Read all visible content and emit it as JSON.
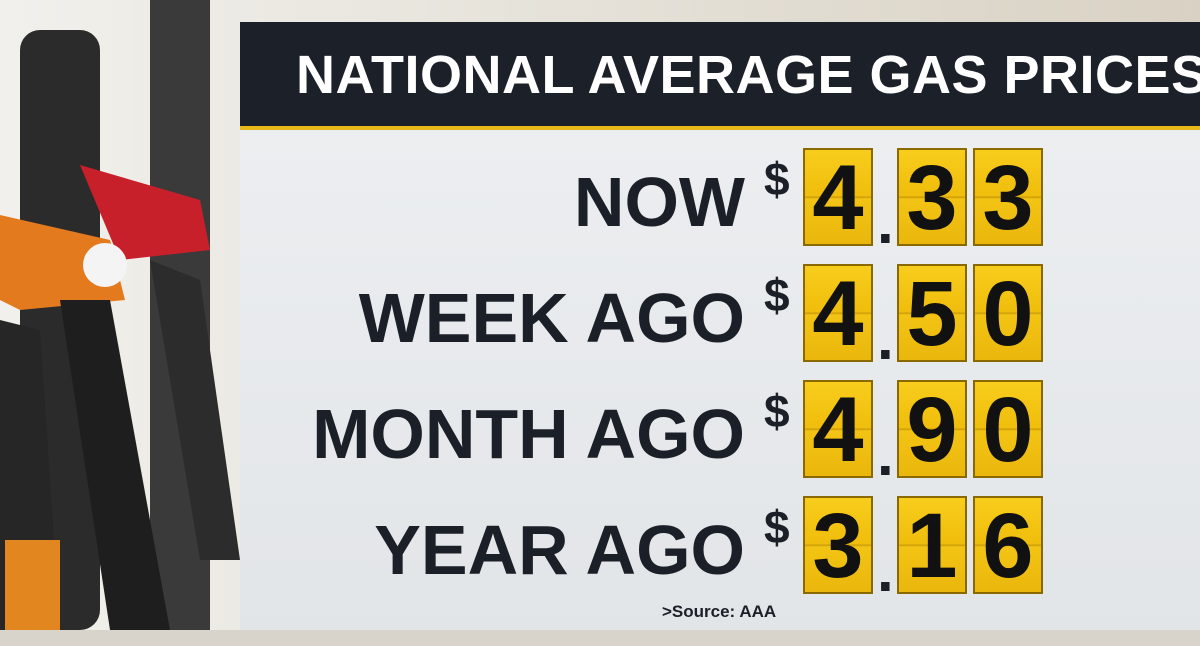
{
  "header": {
    "title": "NATIONAL AVERAGE GAS PRICES"
  },
  "rows": [
    {
      "label": "NOW",
      "currency": "$",
      "price": "4.33"
    },
    {
      "label": "WEEK AGO",
      "currency": "$",
      "price": "4.50"
    },
    {
      "label": "MONTH AGO",
      "currency": "$",
      "price": "4.90"
    },
    {
      "label": "YEAR AGO",
      "currency": "$",
      "price": "3.16"
    }
  ],
  "source": ">Source: AAA"
}
